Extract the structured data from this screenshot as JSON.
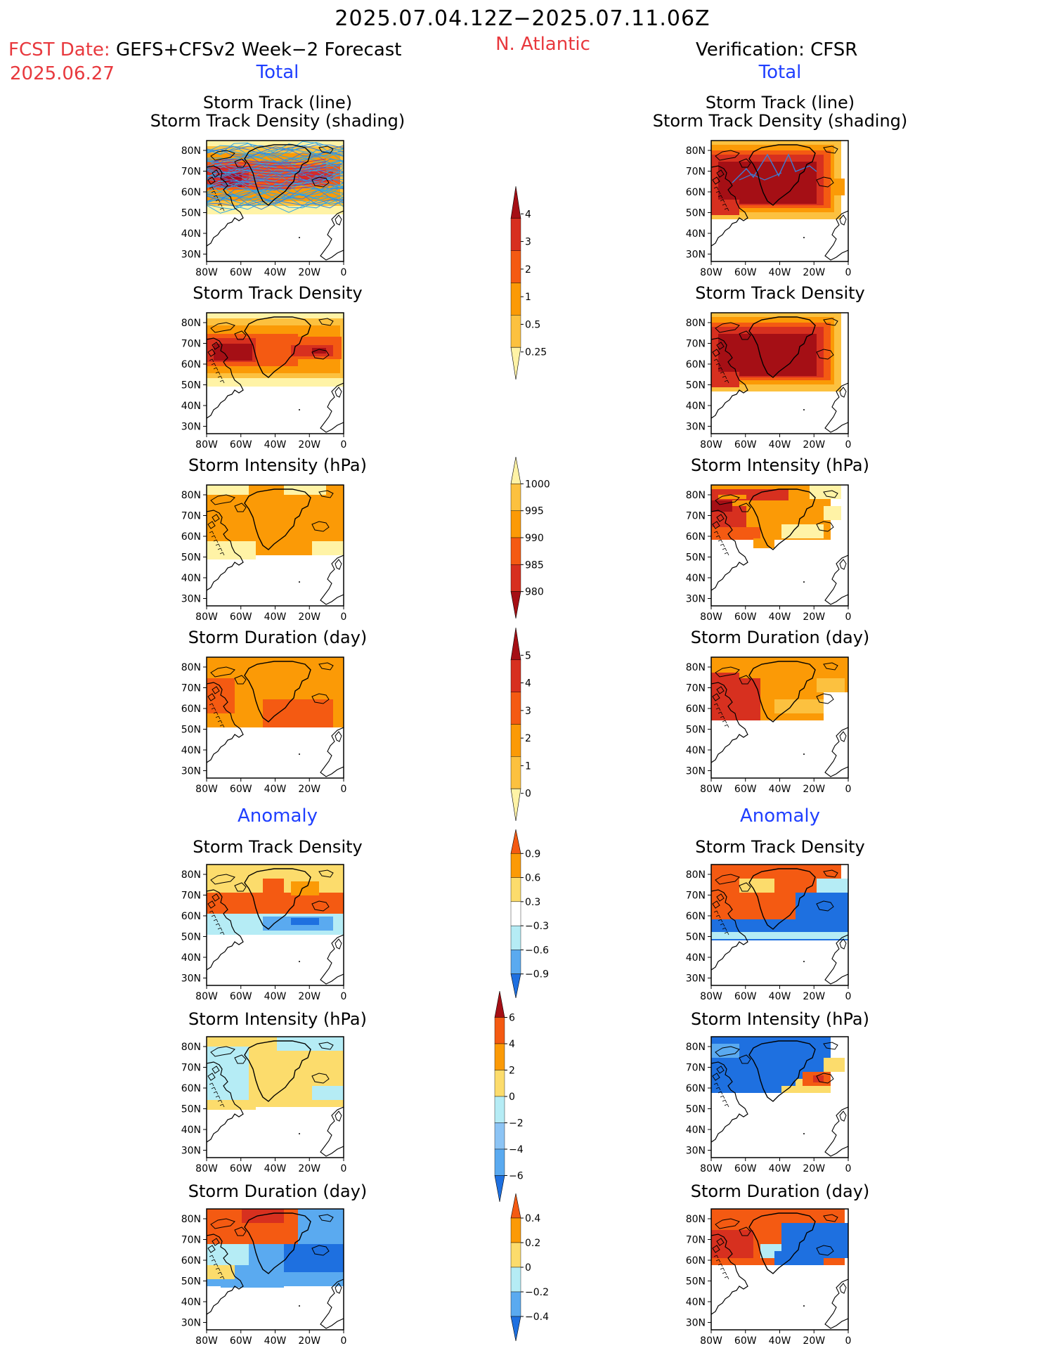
{
  "header": {
    "title": "2025.07.04.12Z−2025.07.11.06Z",
    "fcst_label": "FCST Date:",
    "fcst_model": "GEFS+CFSv2 Week−2 Forecast",
    "fcst_date": "2025.06.27",
    "region": "N. Atlantic",
    "verification": "Verification: CFSR"
  },
  "sections": {
    "total": "Total",
    "anomaly": "Anomaly"
  },
  "panel_titles": {
    "track_line": "Storm Track (line)",
    "track_shading": "Storm Track Density (shading)",
    "density": "Storm Track Density",
    "intensity": "Storm Intensity (hPa)",
    "duration": "Storm Duration (day)"
  },
  "axes": {
    "lat_labels": [
      "80N",
      "70N",
      "60N",
      "50N",
      "40N",
      "30N"
    ],
    "lon_labels": [
      "80W",
      "60W",
      "40W",
      "20W",
      "0"
    ]
  },
  "colorbars": [
    {
      "name": "density-total",
      "labels": [
        "4",
        "3",
        "2",
        "1",
        "0.5",
        "0.25"
      ],
      "colors": [
        "#a50f15",
        "#d7301f",
        "#f45a12",
        "#fb9a06",
        "#fcc13f",
        "#fff3a6"
      ]
    },
    {
      "name": "intensity-total",
      "labels": [
        "1000",
        "995",
        "990",
        "985",
        "980"
      ],
      "colors": [
        "#fff3a6",
        "#fcc13f",
        "#fb9a06",
        "#f45a12",
        "#d7301f",
        "#a50f15"
      ]
    },
    {
      "name": "duration-total",
      "labels": [
        "5",
        "4",
        "3",
        "2",
        "1",
        "0"
      ],
      "colors": [
        "#a50f15",
        "#d7301f",
        "#f45a12",
        "#fb9a06",
        "#fcc13f",
        "#fff3a6"
      ]
    },
    {
      "name": "density-anomaly",
      "labels": [
        "0.9",
        "0.6",
        "0.3",
        "−0.3",
        "−0.6",
        "−0.9"
      ],
      "colors": [
        "#f45a12",
        "#fb9a06",
        "#fcdc6c",
        "#ffffff",
        "#b5ecf5",
        "#5aaaf0",
        "#1e70e0"
      ]
    },
    {
      "name": "intensity-anomaly",
      "labels": [
        "6",
        "4",
        "2",
        "0",
        "−2",
        "−4",
        "−6"
      ],
      "colors": [
        "#a50f15",
        "#f45a12",
        "#fb9a06",
        "#fcdc6c",
        "#b5ecf5",
        "#8cc4f5",
        "#5aaaf0",
        "#1e70e0"
      ]
    },
    {
      "name": "duration-anomaly",
      "labels": [
        "0.4",
        "0.2",
        "0",
        "−0.2",
        "−0.4"
      ],
      "colors": [
        "#f45a12",
        "#fb9a06",
        "#fcdc6c",
        "#b5ecf5",
        "#5aaaf0",
        "#1e70e0"
      ]
    }
  ]
}
